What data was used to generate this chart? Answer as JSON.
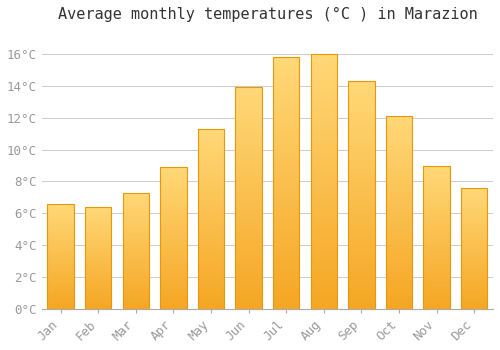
{
  "title": "Average monthly temperatures (°C ) in Marazion",
  "months": [
    "Jan",
    "Feb",
    "Mar",
    "Apr",
    "May",
    "Jun",
    "Jul",
    "Aug",
    "Sep",
    "Oct",
    "Nov",
    "Dec"
  ],
  "values": [
    6.6,
    6.4,
    7.3,
    8.9,
    11.3,
    13.9,
    15.8,
    16.0,
    14.3,
    12.1,
    9.0,
    7.6
  ],
  "bar_color_bottom": "#F5A623",
  "bar_color_top": "#FFD060",
  "bar_edge_color": "#E8960A",
  "background_color": "#FFFFFF",
  "grid_color": "#CCCCCC",
  "ylim": [
    0,
    17.5
  ],
  "yticks": [
    0,
    2,
    4,
    6,
    8,
    10,
    12,
    14,
    16
  ],
  "title_fontsize": 11,
  "tick_fontsize": 9,
  "tick_color": "#999999",
  "bar_width": 0.7
}
